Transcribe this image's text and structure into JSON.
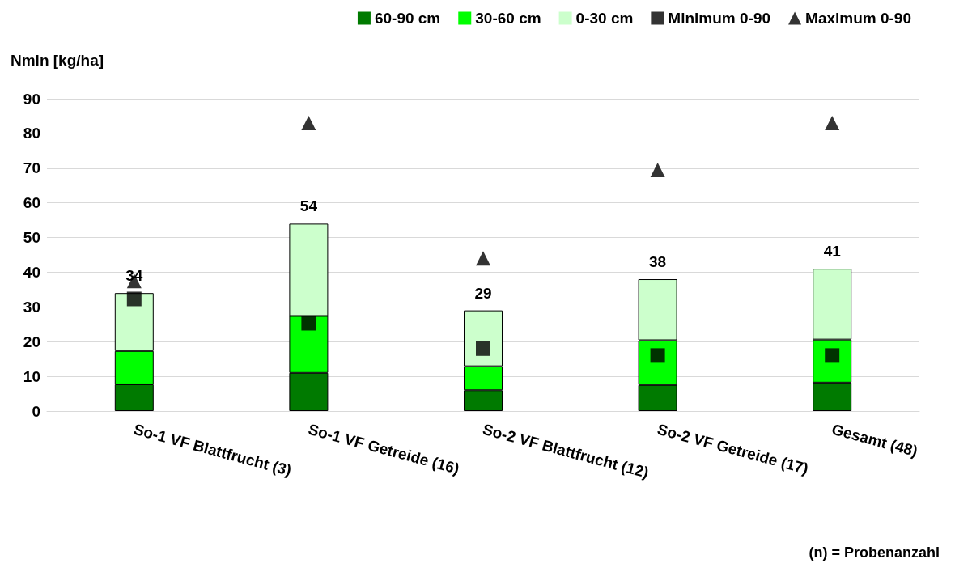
{
  "chart_data": {
    "type": "bar",
    "stacked": true,
    "ylabel": "Nmin [kg/ha]",
    "categories": [
      "So-1 VF Blattfrucht (3)",
      "So-1 VF Getreide (16)",
      "So-2 VF Blattfrucht (12)",
      "So-2 VF Getreide (17)",
      "Gesamt (48)"
    ],
    "series": [
      {
        "name": "60-90 cm",
        "color": "#007a00",
        "values": [
          7.7,
          11,
          6,
          7.5,
          8.2
        ]
      },
      {
        "name": "30-60 cm",
        "color": "#00ff00",
        "values": [
          9.6,
          16.4,
          6.9,
          12.9,
          12.4
        ]
      },
      {
        "name": "0-30 cm",
        "color": "#ccffcc",
        "values": [
          16.7,
          26.6,
          16.1,
          17.6,
          20.4
        ]
      },
      {
        "name": "Minimum 0-90",
        "type": "scatter",
        "marker": "square",
        "color": "#000000",
        "x": [
          "So-1 VF Blattfrucht (3)",
          "So-1 VF Getreide (16)",
          "So-2 VF Blattfrucht (12)",
          "So-2 VF Getreide (17)",
          "Gesamt (48)"
        ],
        "values": [
          32.3,
          25.3,
          18,
          16,
          16
        ]
      },
      {
        "name": "Maximum 0-90",
        "type": "scatter",
        "marker": "triangle",
        "color": "#000000",
        "x": [
          "So-1 VF Blattfrucht (3)",
          "So-1 VF Getreide (16)",
          "So-2 VF Blattfrucht (12)",
          "So-2 VF Getreide (17)",
          "Gesamt (48)"
        ],
        "values": [
          37.5,
          83,
          44,
          69.5,
          83
        ]
      }
    ],
    "totals": [
      "34",
      "54",
      "29",
      "38",
      "41"
    ],
    "ylim": [
      0,
      90
    ],
    "yticks": [
      0,
      10,
      20,
      30,
      40,
      50,
      60,
      70,
      80,
      90
    ],
    "grid": "y",
    "legend": "top right",
    "annotations": [
      "(n) = Probenanzahl"
    ]
  }
}
